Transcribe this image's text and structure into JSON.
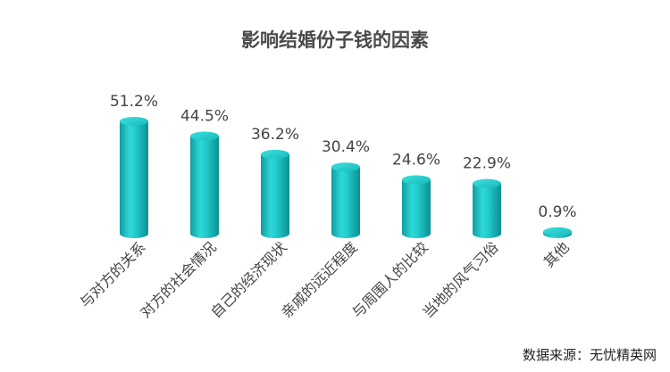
{
  "chart_data": {
    "type": "bar",
    "title": "影响结婚份子钱的因素",
    "categories": [
      "与对方的关系",
      "对方的社会情况",
      "自己的经济现状",
      "亲戚的远近程度",
      "与周围人的比较",
      "当地的风气习俗",
      "其他"
    ],
    "values": [
      51.2,
      44.5,
      36.2,
      30.4,
      24.6,
      22.9,
      0.9
    ],
    "value_labels": [
      "51.2%",
      "44.5%",
      "36.2%",
      "30.4%",
      "24.6%",
      "22.9%",
      "0.9%"
    ],
    "unit": "%",
    "ylim": [
      0,
      51.2
    ],
    "grid": false,
    "legend": "none",
    "bar_style": "3d-cylinder",
    "bar_color": "#1fc7c8"
  },
  "source": "数据来源：无忧精英网"
}
